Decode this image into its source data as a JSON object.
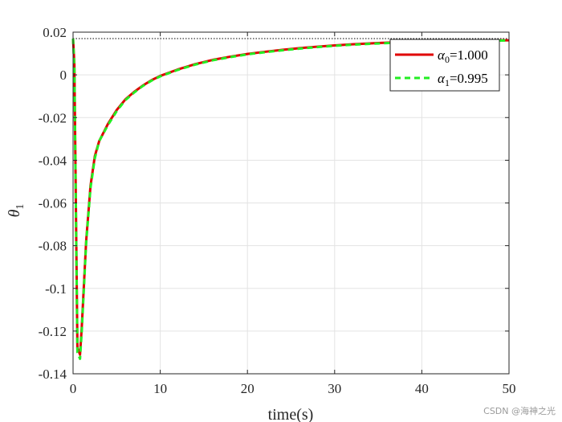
{
  "chart_data": {
    "type": "line",
    "xlabel": "time(s)",
    "ylabel": "θ",
    "ylabel_subscript": "1",
    "xlim": [
      0,
      50
    ],
    "ylim": [
      -0.14,
      0.02
    ],
    "xticks": [
      0,
      10,
      20,
      30,
      40,
      50
    ],
    "yticks": [
      -0.14,
      -0.12,
      -0.1,
      -0.08,
      -0.06,
      -0.04,
      -0.02,
      0,
      0.02
    ],
    "xtick_labels": [
      "0",
      "10",
      "20",
      "30",
      "40",
      "50"
    ],
    "ytick_labels": [
      "-0.14",
      "-0.12",
      "-0.1",
      "-0.08",
      "-0.06",
      "-0.04",
      "-0.02",
      "0",
      "0.02"
    ],
    "grid": true,
    "legend_position": "top-right",
    "reference_line": {
      "y": 0.017,
      "style": "dotted",
      "color": "#000000"
    },
    "series": [
      {
        "name": "α",
        "subscript": "0",
        "value_text": "=1.000",
        "color": "#e00000",
        "style": "solid",
        "x": [
          0,
          0.15,
          0.5,
          0.8,
          1.0,
          1.5,
          2,
          2.5,
          3,
          4,
          5,
          6,
          7,
          8,
          9,
          10,
          12,
          14,
          16,
          18,
          20,
          22,
          24,
          26,
          28,
          30,
          32,
          35,
          38,
          40,
          45,
          50
        ],
        "y": [
          0.017,
          0.005,
          -0.128,
          -0.131,
          -0.118,
          -0.078,
          -0.052,
          -0.038,
          -0.031,
          -0.023,
          -0.0165,
          -0.0115,
          -0.008,
          -0.005,
          -0.0025,
          -0.0005,
          0.0025,
          0.005,
          0.007,
          0.0085,
          0.0098,
          0.0108,
          0.0117,
          0.0125,
          0.0132,
          0.0138,
          0.0143,
          0.0149,
          0.0154,
          0.0156,
          0.016,
          0.0162
        ]
      },
      {
        "name": "α",
        "subscript": "1",
        "value_text": "=0.995",
        "color": "#22ee22",
        "style": "dashed",
        "x": [
          0,
          0.15,
          0.5,
          0.8,
          1.0,
          1.5,
          2,
          2.5,
          3,
          4,
          5,
          6,
          7,
          8,
          9,
          10,
          12,
          14,
          16,
          18,
          20,
          22,
          24,
          26,
          28,
          30,
          32,
          35,
          38,
          40,
          45,
          50
        ],
        "y": [
          0.017,
          0.003,
          -0.13,
          -0.133,
          -0.12,
          -0.079,
          -0.053,
          -0.039,
          -0.031,
          -0.0235,
          -0.017,
          -0.0118,
          -0.0083,
          -0.0052,
          -0.0027,
          -0.0007,
          0.0023,
          0.0048,
          0.0068,
          0.0083,
          0.0096,
          0.0106,
          0.0115,
          0.0123,
          0.013,
          0.0136,
          0.0141,
          0.0147,
          0.0152,
          0.0155,
          0.0159,
          0.0161
        ]
      }
    ]
  },
  "watermark": "CSDN @海神之光"
}
